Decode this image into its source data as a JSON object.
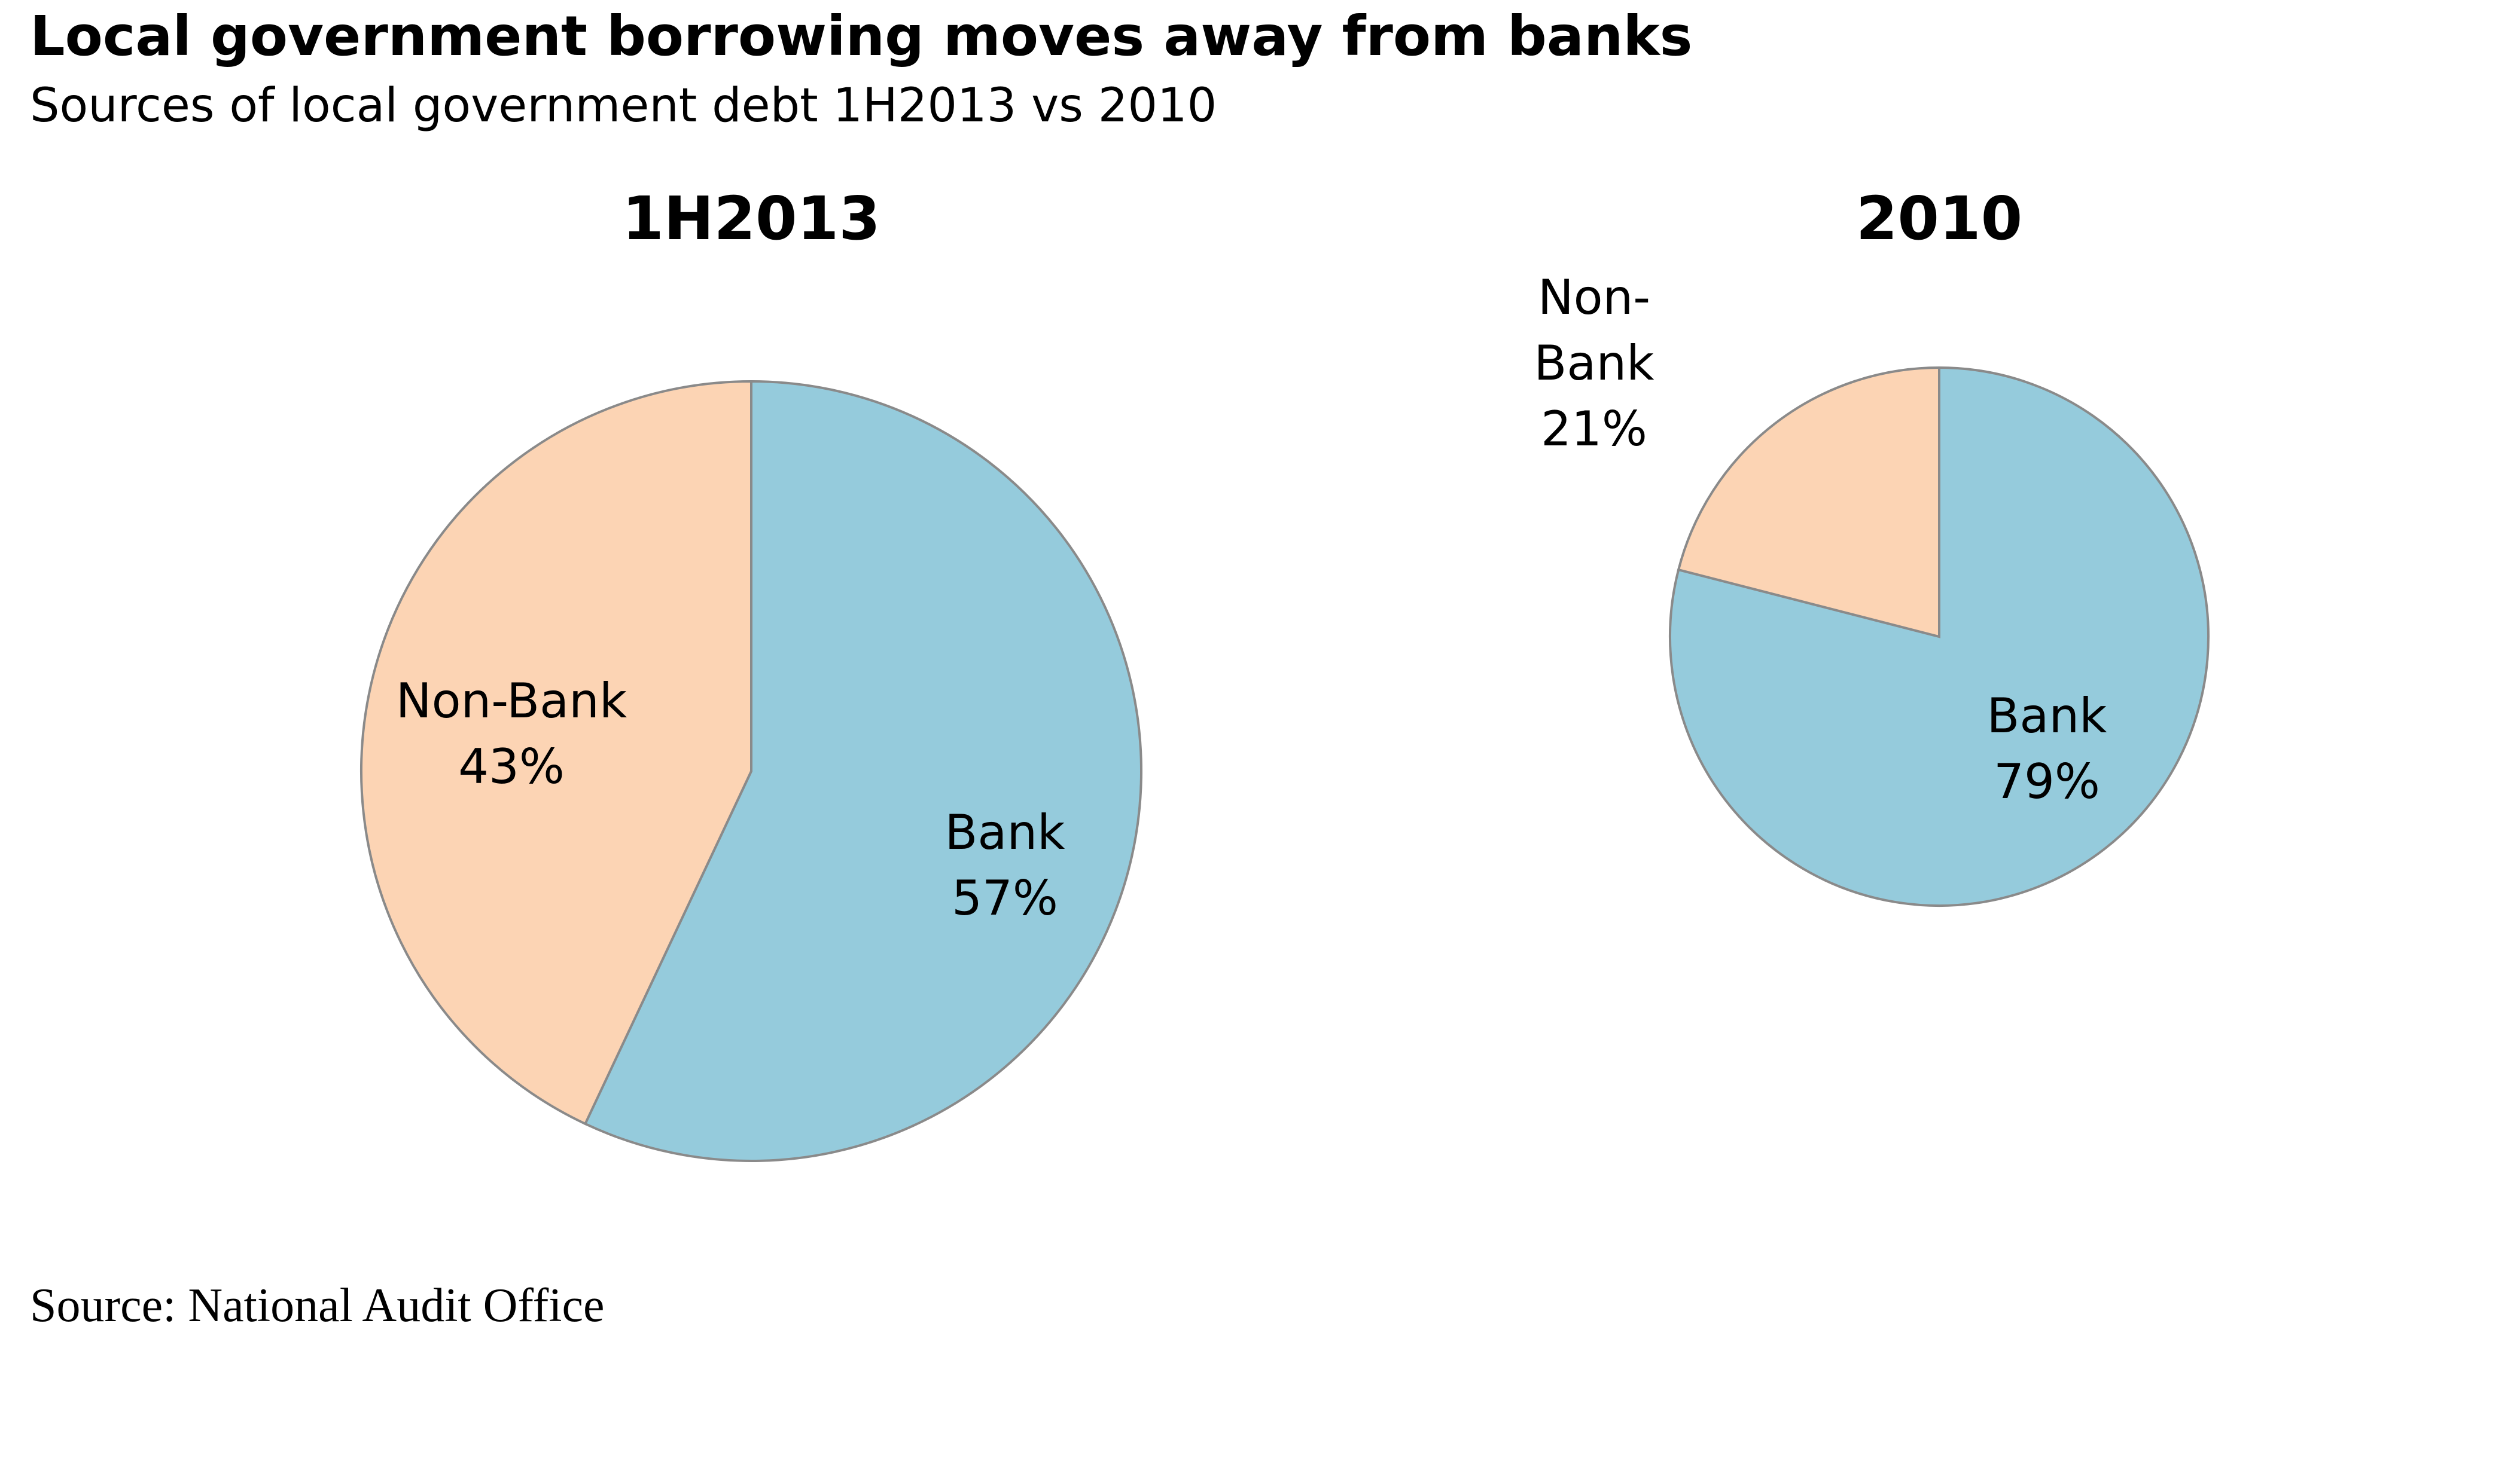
{
  "title": "Local government borrowing moves away from banks",
  "subtitle": "Sources of local government debt 1H2013 vs 2010",
  "source": "Source: National Audit Office",
  "colors": {
    "bank": "#95cbdc",
    "non_bank": "#fcd4b4",
    "stroke": "#8a8a8a"
  },
  "chart_data": [
    {
      "type": "pie",
      "title": "1H2013",
      "slices": [
        {
          "name": "Bank",
          "value": 57,
          "label_lines": [
            "Bank",
            "57%"
          ]
        },
        {
          "name": "Non-Bank",
          "value": 43,
          "label_lines": [
            "Non-Bank",
            "43%"
          ]
        }
      ]
    },
    {
      "type": "pie",
      "title": "2010",
      "slices": [
        {
          "name": "Bank",
          "value": 79,
          "label_lines": [
            "Bank",
            "79%"
          ]
        },
        {
          "name": "Non-Bank",
          "value": 21,
          "label_lines": [
            "Non-",
            "Bank",
            "21%"
          ]
        }
      ]
    }
  ]
}
